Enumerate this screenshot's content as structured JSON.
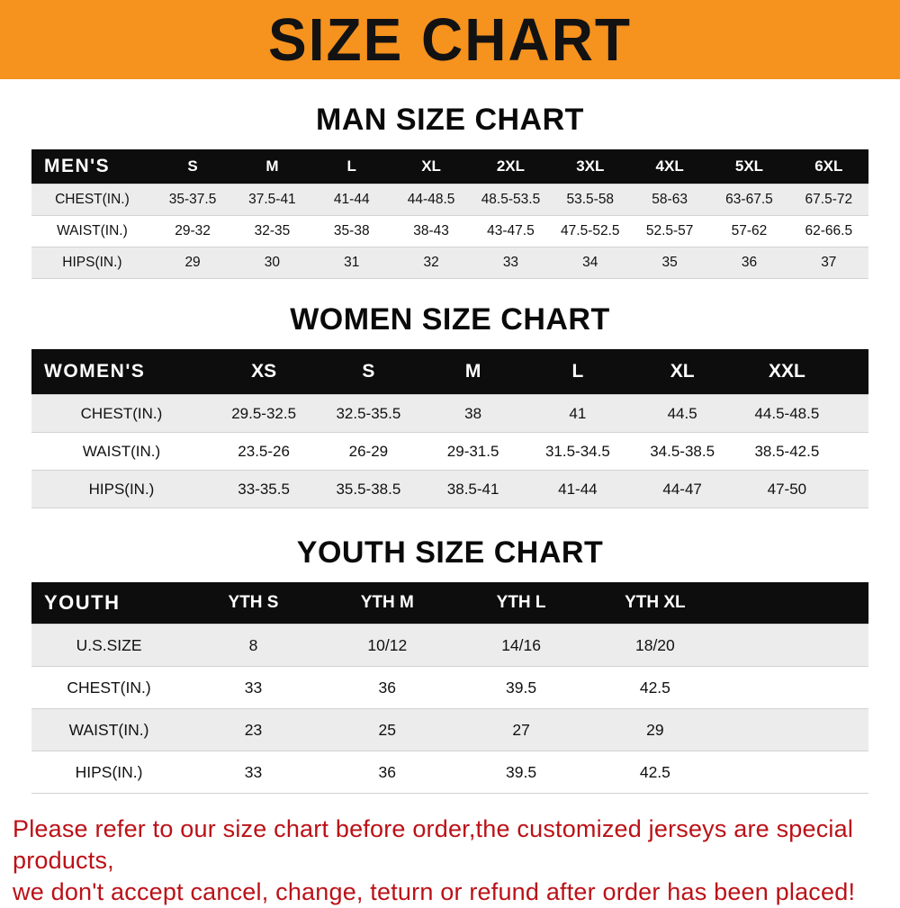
{
  "banner": {
    "title": "SIZE CHART",
    "bg_color": "#f6921e"
  },
  "sections": [
    {
      "heading": "MAN SIZE CHART",
      "table": {
        "header_label": "MEN'S",
        "columns": [
          "S",
          "M",
          "L",
          "XL",
          "2XL",
          "3XL",
          "4XL",
          "5XL",
          "6XL"
        ],
        "rows": [
          {
            "label": "CHEST(IN.)",
            "values": [
              "35-37.5",
              "37.5-41",
              "41-44",
              "44-48.5",
              "48.5-53.5",
              "53.5-58",
              "58-63",
              "63-67.5",
              "67.5-72"
            ]
          },
          {
            "label": "WAIST(IN.)",
            "values": [
              "29-32",
              "32-35",
              "35-38",
              "38-43",
              "43-47.5",
              "47.5-52.5",
              "52.5-57",
              "57-62",
              "62-66.5"
            ]
          },
          {
            "label": "HIPS(IN.)",
            "values": [
              "29",
              "30",
              "31",
              "32",
              "33",
              "34",
              "35",
              "36",
              "37"
            ]
          }
        ]
      }
    },
    {
      "heading": "WOMEN SIZE CHART",
      "table": {
        "header_label": "WOMEN'S",
        "columns": [
          "XS",
          "S",
          "M",
          "L",
          "XL",
          "XXL"
        ],
        "rows": [
          {
            "label": "CHEST(IN.)",
            "values": [
              "29.5-32.5",
              "32.5-35.5",
              "38",
              "41",
              "44.5",
              "44.5-48.5"
            ]
          },
          {
            "label": "WAIST(IN.)",
            "values": [
              "23.5-26",
              "26-29",
              "29-31.5",
              "31.5-34.5",
              "34.5-38.5",
              "38.5-42.5"
            ]
          },
          {
            "label": "HIPS(IN.)",
            "values": [
              "33-35.5",
              "35.5-38.5",
              "38.5-41",
              "41-44",
              "44-47",
              "47-50"
            ]
          }
        ]
      }
    },
    {
      "heading": "YOUTH SIZE CHART",
      "table": {
        "header_label": "YOUTH",
        "columns": [
          "YTH S",
          "YTH M",
          "YTH L",
          "YTH XL"
        ],
        "rows": [
          {
            "label": "U.S.SIZE",
            "values": [
              "8",
              "10/12",
              "14/16",
              "18/20"
            ]
          },
          {
            "label": "CHEST(IN.)",
            "values": [
              "33",
              "36",
              "39.5",
              "42.5"
            ]
          },
          {
            "label": "WAIST(IN.)",
            "values": [
              "23",
              "25",
              "27",
              "29"
            ]
          },
          {
            "label": "HIPS(IN.)",
            "values": [
              "33",
              "36",
              "39.5",
              "42.5"
            ]
          }
        ]
      }
    }
  ],
  "footer": {
    "line1": "Please refer to our size chart before order,the customized jerseys are special products,",
    "line2": "we don't accept cancel, change, teturn or refund after order has been placed!"
  }
}
